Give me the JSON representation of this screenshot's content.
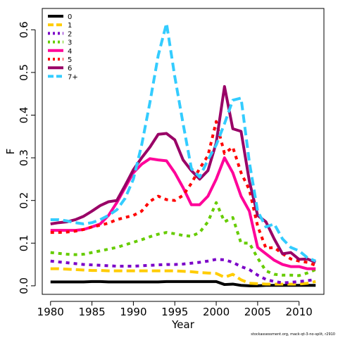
{
  "chart_data": {
    "type": "line",
    "title": "",
    "xlabel": "Year",
    "ylabel": "F",
    "xlim": [
      1979,
      2013
    ],
    "ylim": [
      -0.02,
      0.65
    ],
    "x_ticks": [
      1980,
      1985,
      1990,
      1995,
      2000,
      2005,
      2010
    ],
    "y_ticks": [
      0.0,
      0.1,
      0.2,
      0.3,
      0.4,
      0.5,
      0.6
    ],
    "y_tick_labels": [
      "0.0",
      "0.1",
      "0.2",
      "0.3",
      "0.4",
      "0.5",
      "0.6"
    ],
    "legend_position": "top-left",
    "x": [
      1980,
      1981,
      1982,
      1983,
      1984,
      1985,
      1986,
      1987,
      1988,
      1989,
      1990,
      1991,
      1992,
      1993,
      1994,
      1995,
      1996,
      1997,
      1998,
      1999,
      2000,
      2001,
      2002,
      2003,
      2004,
      2005,
      2006,
      2007,
      2008,
      2009,
      2010,
      2011,
      2012
    ],
    "series": [
      {
        "name": "0",
        "color": "#000000",
        "dash": "solid",
        "values": [
          0.009,
          0.009,
          0.009,
          0.009,
          0.009,
          0.01,
          0.01,
          0.009,
          0.009,
          0.009,
          0.009,
          0.009,
          0.009,
          0.009,
          0.01,
          0.01,
          0.01,
          0.01,
          0.01,
          0.01,
          0.01,
          0.003,
          0.004,
          0.001,
          0.0,
          0.0,
          0.001,
          0.001,
          0.001,
          0.001,
          0.001,
          0.001,
          0.001
        ]
      },
      {
        "name": "1",
        "color": "#FFCC00",
        "dash": "long",
        "values": [
          0.04,
          0.04,
          0.039,
          0.038,
          0.037,
          0.036,
          0.036,
          0.035,
          0.035,
          0.035,
          0.035,
          0.035,
          0.035,
          0.035,
          0.035,
          0.035,
          0.034,
          0.033,
          0.031,
          0.03,
          0.029,
          0.02,
          0.027,
          0.014,
          0.006,
          0.005,
          0.004,
          0.004,
          0.004,
          0.004,
          0.004,
          0.006,
          0.01
        ]
      },
      {
        "name": "2",
        "color": "#7B00C8",
        "dash": "short",
        "values": [
          0.058,
          0.056,
          0.054,
          0.052,
          0.05,
          0.049,
          0.048,
          0.047,
          0.046,
          0.046,
          0.046,
          0.047,
          0.048,
          0.049,
          0.05,
          0.05,
          0.051,
          0.053,
          0.055,
          0.058,
          0.062,
          0.061,
          0.055,
          0.045,
          0.038,
          0.025,
          0.015,
          0.01,
          0.007,
          0.008,
          0.01,
          0.012,
          0.015
        ]
      },
      {
        "name": "3",
        "color": "#66CC00",
        "dash": "short",
        "values": [
          0.078,
          0.076,
          0.074,
          0.073,
          0.074,
          0.078,
          0.082,
          0.086,
          0.09,
          0.096,
          0.102,
          0.108,
          0.115,
          0.121,
          0.125,
          0.122,
          0.118,
          0.116,
          0.125,
          0.15,
          0.195,
          0.15,
          0.16,
          0.1,
          0.1,
          0.065,
          0.035,
          0.027,
          0.025,
          0.025,
          0.024,
          0.03,
          0.038
        ]
      },
      {
        "name": "4",
        "color": "#FF0099",
        "dash": "solid",
        "values": [
          0.13,
          0.13,
          0.13,
          0.13,
          0.132,
          0.138,
          0.145,
          0.165,
          0.195,
          0.23,
          0.265,
          0.285,
          0.298,
          0.295,
          0.293,
          0.265,
          0.23,
          0.19,
          0.19,
          0.21,
          0.25,
          0.3,
          0.265,
          0.21,
          0.175,
          0.09,
          0.075,
          0.06,
          0.05,
          0.045,
          0.045,
          0.04,
          0.04
        ]
      },
      {
        "name": "5",
        "color": "#FF0000",
        "dash": "short",
        "values": [
          0.125,
          0.125,
          0.126,
          0.128,
          0.132,
          0.138,
          0.142,
          0.147,
          0.155,
          0.16,
          0.165,
          0.175,
          0.198,
          0.21,
          0.202,
          0.2,
          0.212,
          0.24,
          0.275,
          0.305,
          0.385,
          0.31,
          0.325,
          0.265,
          0.225,
          0.14,
          0.088,
          0.09,
          0.075,
          0.063,
          0.058,
          0.055,
          0.048
        ]
      },
      {
        "name": "6",
        "color": "#990066",
        "dash": "solid",
        "values": [
          0.145,
          0.148,
          0.15,
          0.155,
          0.163,
          0.175,
          0.188,
          0.197,
          0.2,
          0.235,
          0.272,
          0.3,
          0.325,
          0.355,
          0.357,
          0.342,
          0.295,
          0.27,
          0.25,
          0.27,
          0.335,
          0.467,
          0.368,
          0.362,
          0.245,
          0.165,
          0.15,
          0.11,
          0.075,
          0.078,
          0.062,
          0.063,
          0.055
        ]
      },
      {
        "name": "7+",
        "color": "#33CCFF",
        "dash": "long",
        "values": [
          0.155,
          0.155,
          0.152,
          0.148,
          0.145,
          0.148,
          0.155,
          0.165,
          0.178,
          0.205,
          0.25,
          0.33,
          0.43,
          0.54,
          0.615,
          0.49,
          0.38,
          0.275,
          0.255,
          0.295,
          0.33,
          0.38,
          0.435,
          0.44,
          0.29,
          0.175,
          0.138,
          0.145,
          0.11,
          0.09,
          0.082,
          0.066,
          0.058
        ]
      }
    ]
  },
  "footer": {
    "text": "stockassessment.org, mack-qt-3-no-split, r2910"
  }
}
